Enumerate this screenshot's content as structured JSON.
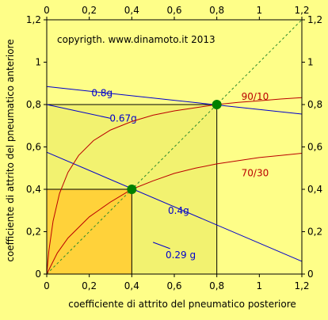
{
  "colors": {
    "background": "#fefe88",
    "plot_area": "#fefe88",
    "inner_square": "#f2f270",
    "small_square": "#ffd23a",
    "optimum_line": "#2e8b2e",
    "grip_lines": "#0000cc",
    "distribution_curves": "#bb0000",
    "points": "#008000",
    "frame": "#000000"
  },
  "chart_data": {
    "type": "line",
    "title": "",
    "copyright": "copyrigth. www.dinamoto.it  2013",
    "xlabel": "coefficiente di attrito del pneumatico posteriore",
    "ylabel": "coefficiente di attrito del pneumatico anteriore",
    "xlim": [
      0,
      1.2
    ],
    "ylim": [
      0,
      1.2
    ],
    "xticks": [
      "0",
      "0,2",
      "0,4",
      "0,6",
      "0,8",
      "1",
      "1,2"
    ],
    "yticks": [
      "0",
      "0,2",
      "0,4",
      "0,6",
      "0,8",
      "1",
      "1,2"
    ],
    "xtick_values": [
      0,
      0.2,
      0.4,
      0.6,
      0.8,
      1.0,
      1.2
    ],
    "ytick_values": [
      0,
      0.2,
      0.4,
      0.6,
      0.8,
      1.0,
      1.2
    ],
    "grid": false,
    "regions": [
      {
        "x": [
          0,
          0.8
        ],
        "y": [
          0,
          0.8
        ],
        "color_key": "inner_square"
      },
      {
        "x": [
          0,
          0.4
        ],
        "y": [
          0,
          0.4
        ],
        "color_key": "small_square"
      }
    ],
    "diagonal": {
      "x": [
        0,
        1.2
      ],
      "y": [
        0,
        1.2
      ],
      "style": "dashed"
    },
    "grip_lines": [
      {
        "label": "0.8g",
        "x": [
          0,
          1.2
        ],
        "y": [
          0.885,
          0.755
        ],
        "label_at": [
          0.26,
          0.855
        ]
      },
      {
        "label": "0.4g",
        "x": [
          0,
          1.2
        ],
        "y": [
          0.575,
          0.06
        ],
        "label_at": [
          0.62,
          0.3
        ]
      },
      {
        "label": "0.67g",
        "x": [
          0,
          0.3
        ],
        "y": [
          0.8,
          0.735
        ],
        "label_at": [
          0.36,
          0.735
        ]
      },
      {
        "label": "0.29 g",
        "x": [
          0.5,
          0.58
        ],
        "y": [
          0.15,
          0.12
        ],
        "label_at": [
          0.63,
          0.09
        ]
      }
    ],
    "series": [
      {
        "name": "90/10",
        "x": [
          0,
          0.01,
          0.03,
          0.06,
          0.1,
          0.15,
          0.22,
          0.3,
          0.4,
          0.5,
          0.6,
          0.7,
          0.8,
          0.9,
          1.0,
          1.1,
          1.2
        ],
        "y": [
          0,
          0.11,
          0.25,
          0.38,
          0.48,
          0.56,
          0.63,
          0.68,
          0.72,
          0.75,
          0.77,
          0.785,
          0.8,
          0.81,
          0.818,
          0.826,
          0.833
        ]
      },
      {
        "name": "70/30",
        "x": [
          0,
          0.05,
          0.1,
          0.2,
          0.3,
          0.4,
          0.5,
          0.6,
          0.7,
          0.8,
          0.9,
          1.0,
          1.1,
          1.2
        ],
        "y": [
          0,
          0.1,
          0.17,
          0.27,
          0.34,
          0.4,
          0.44,
          0.475,
          0.5,
          0.52,
          0.535,
          0.55,
          0.56,
          0.57
        ]
      }
    ],
    "series_labels_at": [
      [
        0.98,
        0.8
      ],
      [
        0.98,
        0.44
      ]
    ],
    "points": [
      {
        "x": 0.4,
        "y": 0.4
      },
      {
        "x": 0.8,
        "y": 0.8
      }
    ]
  }
}
